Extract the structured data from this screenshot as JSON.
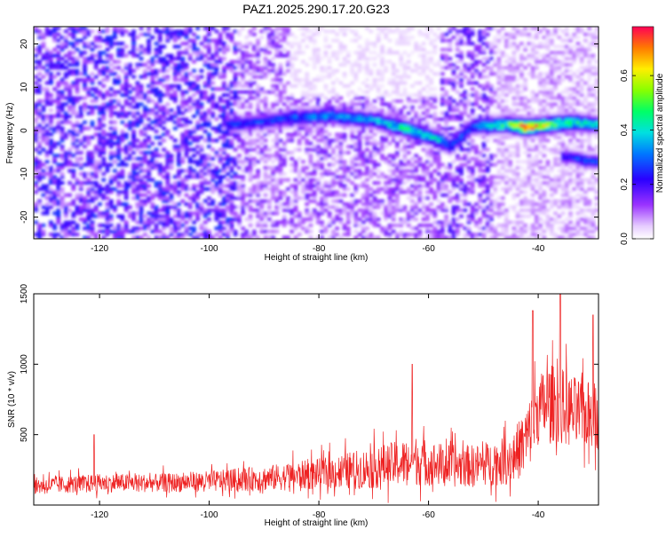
{
  "title": "PAZ1.2025.290.17.20.G23",
  "chart_data": [
    {
      "type": "heatmap",
      "xlabel": "Height of straight line (km)",
      "ylabel": "Frequency (Hz)",
      "xlim": [
        -132,
        -29
      ],
      "ylim": [
        -25,
        24
      ],
      "x_ticks": [
        -120,
        -100,
        -80,
        -60,
        -40
      ],
      "y_ticks": [
        -20,
        -10,
        0,
        10,
        20
      ],
      "colorbar": {
        "label": "Normalized spectral amplitude",
        "range": [
          0.0,
          0.78
        ],
        "ticks": [
          0.0,
          0.2,
          0.4,
          0.6
        ]
      },
      "ridge": {
        "description_points": [
          {
            "x": -95,
            "freq": 1.5,
            "amp": 0.25
          },
          {
            "x": -85,
            "freq": 3.0,
            "amp": 0.3
          },
          {
            "x": -78,
            "freq": 3.5,
            "amp": 0.35
          },
          {
            "x": -70,
            "freq": 2.5,
            "amp": 0.35
          },
          {
            "x": -64,
            "freq": 0.5,
            "amp": 0.45
          },
          {
            "x": -58,
            "freq": -2.0,
            "amp": 0.4
          },
          {
            "x": -56,
            "freq": -3.5,
            "amp": 0.3
          },
          {
            "x": -52,
            "freq": 1.0,
            "amp": 0.3
          },
          {
            "x": -46,
            "freq": 1.5,
            "amp": 0.5
          },
          {
            "x": -42,
            "freq": 0.8,
            "amp": 0.78
          },
          {
            "x": -38,
            "freq": 1.5,
            "amp": 0.55
          },
          {
            "x": -33,
            "freq": 2.0,
            "amp": 0.45
          },
          {
            "x": -30,
            "freq": 1.5,
            "amp": 0.4
          }
        ],
        "branch_points": [
          {
            "x": -34,
            "freq": -6.0,
            "amp": 0.25
          },
          {
            "x": -31,
            "freq": -7.0,
            "amp": 0.3
          }
        ]
      }
    },
    {
      "type": "line",
      "xlabel": "Height of straight line (km)",
      "ylabel": "SNR (10 * v/v)",
      "xlim": [
        -132,
        -29
      ],
      "ylim": [
        0,
        1500
      ],
      "x_ticks": [
        -120,
        -100,
        -80,
        -60,
        -40
      ],
      "y_ticks": [
        500,
        1000,
        1500
      ],
      "series": [
        {
          "name": "SNR",
          "color": "#ee2222",
          "envelope_x": [
            -132,
            -120,
            -110,
            -100,
            -90,
            -80,
            -75,
            -70,
            -65,
            -62,
            -60,
            -55,
            -50,
            -45,
            -42,
            -40,
            -38,
            -36,
            -34,
            -32,
            -29
          ],
          "envelope_base": [
            130,
            150,
            150,
            160,
            180,
            210,
            230,
            250,
            280,
            300,
            280,
            260,
            270,
            300,
            450,
            650,
            700,
            680,
            640,
            620,
            600
          ],
          "envelope_spread": [
            120,
            130,
            130,
            150,
            180,
            220,
            260,
            300,
            330,
            360,
            320,
            300,
            300,
            350,
            500,
            500,
            550,
            550,
            520,
            500,
            480
          ],
          "peaks": [
            {
              "x": -121,
              "y": 500
            },
            {
              "x": -63,
              "y": 1000
            },
            {
              "x": -41,
              "y": 1380
            },
            {
              "x": -36,
              "y": 1500
            },
            {
              "x": -30,
              "y": 1350
            }
          ]
        }
      ]
    }
  ]
}
